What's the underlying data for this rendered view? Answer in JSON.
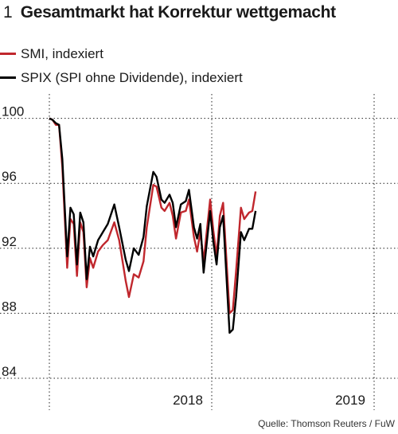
{
  "header": {
    "number": "1",
    "title": "Gesamtmarkt hat Korrektur wettgemacht"
  },
  "legend": [
    {
      "label": "SMI, indexiert",
      "color": "#c0272d"
    },
    {
      "label": "SPIX (SPI ohne Dividende), indexiert",
      "color": "#000000"
    }
  ],
  "source": "Quelle: Thomson Reuters / FuW",
  "chart_data": {
    "type": "line",
    "ylim": [
      84,
      101.5
    ],
    "yticks": [
      84,
      88,
      92,
      96,
      100
    ],
    "x_labels": [
      {
        "label": "2018",
        "x": 0.5
      },
      {
        "label": "2019",
        "x": 1.0
      }
    ],
    "grid": true,
    "series": [
      {
        "name": "SMI, indexiert",
        "color": "#c0272d",
        "points": [
          [
            0.0,
            100.0
          ],
          [
            0.01,
            99.9
          ],
          [
            0.02,
            99.6
          ],
          [
            0.03,
            99.6
          ],
          [
            0.04,
            97.0
          ],
          [
            0.055,
            90.8
          ],
          [
            0.065,
            93.8
          ],
          [
            0.075,
            93.5
          ],
          [
            0.085,
            90.3
          ],
          [
            0.095,
            93.6
          ],
          [
            0.105,
            93.0
          ],
          [
            0.115,
            89.6
          ],
          [
            0.125,
            91.4
          ],
          [
            0.135,
            90.8
          ],
          [
            0.15,
            91.8
          ],
          [
            0.165,
            92.2
          ],
          [
            0.18,
            92.5
          ],
          [
            0.2,
            93.6
          ],
          [
            0.215,
            92.5
          ],
          [
            0.235,
            90.0
          ],
          [
            0.245,
            89.0
          ],
          [
            0.26,
            90.4
          ],
          [
            0.275,
            90.2
          ],
          [
            0.29,
            91.2
          ],
          [
            0.3,
            93.3
          ],
          [
            0.32,
            95.9
          ],
          [
            0.33,
            95.8
          ],
          [
            0.345,
            94.5
          ],
          [
            0.355,
            94.3
          ],
          [
            0.37,
            94.8
          ],
          [
            0.38,
            94.0
          ],
          [
            0.39,
            92.6
          ],
          [
            0.405,
            94.2
          ],
          [
            0.42,
            94.3
          ],
          [
            0.43,
            95.0
          ],
          [
            0.445,
            92.7
          ],
          [
            0.455,
            91.8
          ],
          [
            0.465,
            93.0
          ],
          [
            0.475,
            91.2
          ],
          [
            0.495,
            95.0
          ],
          [
            0.505,
            93.1
          ],
          [
            0.515,
            91.5
          ],
          [
            0.525,
            94.0
          ],
          [
            0.535,
            94.8
          ],
          [
            0.555,
            88.0
          ],
          [
            0.565,
            88.2
          ],
          [
            0.575,
            90.6
          ],
          [
            0.59,
            94.5
          ],
          [
            0.6,
            93.8
          ],
          [
            0.615,
            94.2
          ],
          [
            0.625,
            94.3
          ],
          [
            0.635,
            95.5
          ]
        ]
      },
      {
        "name": "SPIX (SPI ohne Dividende), indexiert",
        "color": "#000000",
        "points": [
          [
            0.0,
            100.0
          ],
          [
            0.01,
            99.9
          ],
          [
            0.02,
            99.7
          ],
          [
            0.03,
            99.6
          ],
          [
            0.04,
            97.5
          ],
          [
            0.055,
            91.5
          ],
          [
            0.065,
            94.5
          ],
          [
            0.075,
            94.1
          ],
          [
            0.085,
            91.0
          ],
          [
            0.095,
            94.2
          ],
          [
            0.105,
            93.6
          ],
          [
            0.115,
            90.1
          ],
          [
            0.125,
            92.1
          ],
          [
            0.135,
            91.5
          ],
          [
            0.15,
            92.5
          ],
          [
            0.165,
            93.0
          ],
          [
            0.18,
            93.5
          ],
          [
            0.2,
            94.7
          ],
          [
            0.215,
            93.3
          ],
          [
            0.235,
            91.3
          ],
          [
            0.245,
            90.6
          ],
          [
            0.26,
            92.0
          ],
          [
            0.275,
            91.6
          ],
          [
            0.29,
            92.7
          ],
          [
            0.3,
            94.6
          ],
          [
            0.32,
            96.7
          ],
          [
            0.33,
            96.4
          ],
          [
            0.345,
            95.0
          ],
          [
            0.355,
            94.8
          ],
          [
            0.37,
            95.3
          ],
          [
            0.38,
            94.8
          ],
          [
            0.39,
            93.3
          ],
          [
            0.405,
            94.7
          ],
          [
            0.42,
            94.9
          ],
          [
            0.43,
            95.6
          ],
          [
            0.445,
            93.3
          ],
          [
            0.455,
            92.6
          ],
          [
            0.465,
            93.5
          ],
          [
            0.475,
            90.5
          ],
          [
            0.495,
            94.3
          ],
          [
            0.505,
            92.4
          ],
          [
            0.515,
            91.0
          ],
          [
            0.525,
            93.3
          ],
          [
            0.535,
            94.0
          ],
          [
            0.555,
            86.8
          ],
          [
            0.565,
            87.0
          ],
          [
            0.575,
            89.0
          ],
          [
            0.59,
            93.0
          ],
          [
            0.6,
            92.5
          ],
          [
            0.615,
            93.2
          ],
          [
            0.625,
            93.2
          ],
          [
            0.635,
            94.3
          ]
        ]
      }
    ]
  }
}
